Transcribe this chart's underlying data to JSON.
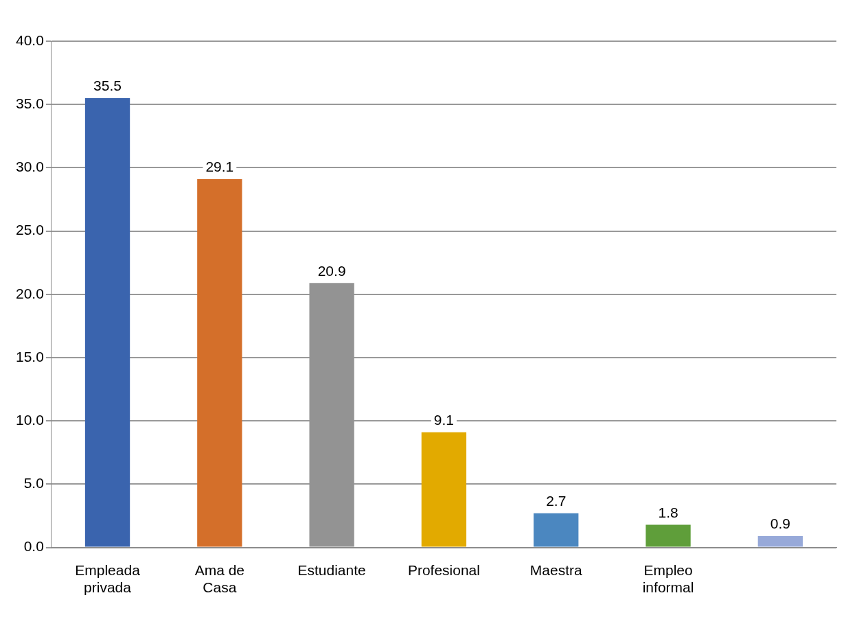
{
  "chart_data": {
    "type": "bar",
    "categories": [
      "Empleada privada",
      "Ama de Casa",
      "Estudiante",
      "Profesional",
      "Maestra",
      "Empleo informal",
      null
    ],
    "values": [
      35.5,
      29.1,
      20.9,
      9.1,
      2.7,
      1.8,
      0.9
    ],
    "colors": [
      "#3a64ae",
      "#d46f2a",
      "#939393",
      "#e2aa00",
      "#4b87c0",
      "#5f9e3a",
      "#97a9d9"
    ],
    "ylim": [
      0,
      40
    ],
    "yticks": [
      {
        "value": 0,
        "label": "0.0"
      },
      {
        "value": 5,
        "label": "5.0"
      },
      {
        "value": 10,
        "label": "10.0"
      },
      {
        "value": 15,
        "label": "15.0"
      },
      {
        "value": 20,
        "label": "20.0"
      },
      {
        "value": 25,
        "label": "25.0"
      },
      {
        "value": 30,
        "label": "30.0"
      },
      {
        "value": 35,
        "label": "35.0"
      },
      {
        "value": 40,
        "label": "40.0"
      }
    ],
    "grid": "y",
    "data_labels": true
  }
}
